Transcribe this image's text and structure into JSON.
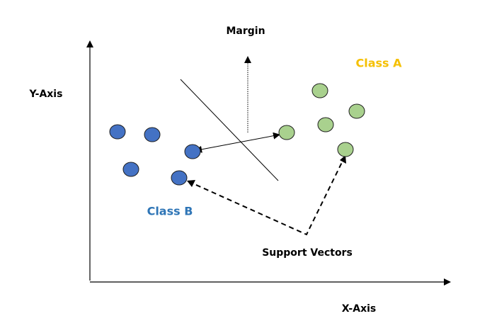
{
  "labels": {
    "margin": "Margin",
    "class_a": "Class A",
    "class_b": "Class B",
    "y_axis": "Y-Axis",
    "x_axis": "X-Axis",
    "support_vectors": "Support Vectors"
  },
  "colors": {
    "class_a_text": "#f5c000",
    "class_b_text": "#2e75b6",
    "class_a_point": "#a9d18e",
    "class_b_point": "#4472c4",
    "point_stroke": "#1f1f1f"
  },
  "class_a_point_count": 5,
  "class_b_point_count": 5
}
